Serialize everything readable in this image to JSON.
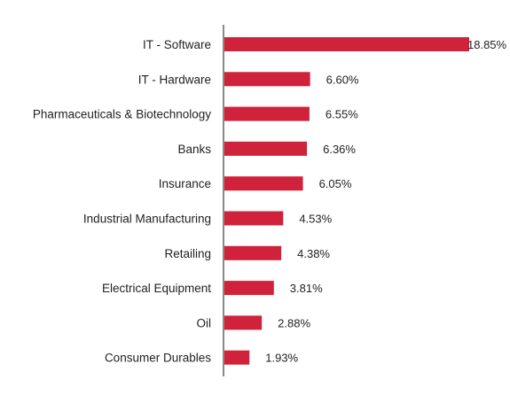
{
  "chart_data": {
    "type": "bar",
    "orientation": "horizontal",
    "categories": [
      "IT - Software",
      "IT - Hardware",
      "Pharmaceuticals & Biotechnology",
      "Banks",
      "Insurance",
      "Industrial Manufacturing",
      "Retailing",
      "Electrical Equipment",
      "Oil",
      "Consumer Durables"
    ],
    "values": [
      18.85,
      6.6,
      6.55,
      6.36,
      6.05,
      4.53,
      4.38,
      3.81,
      2.88,
      1.93
    ],
    "value_labels": [
      "18.85%",
      "6.60%",
      "6.55%",
      "6.36%",
      "6.05%",
      "4.53%",
      "4.38%",
      "3.81%",
      "2.88%",
      "1.93%"
    ],
    "bar_color": "#d0223a",
    "grid": false,
    "legend": "none"
  }
}
